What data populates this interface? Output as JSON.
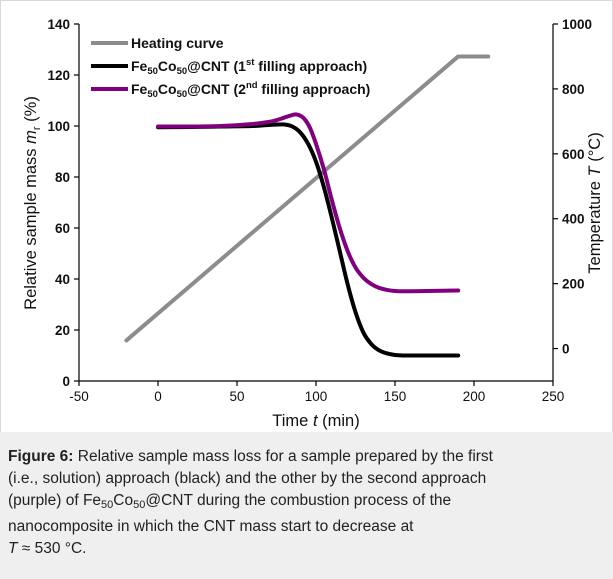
{
  "chart_data": {
    "type": "line",
    "x": {
      "label": "Time t (min)",
      "label_parts": {
        "pre": "Time ",
        "var": "t",
        "post": " (min)"
      },
      "range": [
        -50,
        250
      ],
      "ticks": [
        -50,
        0,
        50,
        100,
        150,
        200,
        250
      ],
      "tick_labels": [
        "-50",
        "0",
        "50",
        "100",
        "150",
        "200",
        "250"
      ]
    },
    "y_left": {
      "label": "Relative sample mass m_r (%)",
      "label_parts": {
        "pre": "Relative sample mass ",
        "var": "m",
        "sub": "r",
        "post": " (%)"
      },
      "range": [
        0,
        140
      ],
      "ticks": [
        0,
        20,
        40,
        60,
        80,
        100,
        120,
        140
      ],
      "tick_labels": [
        "0",
        "20",
        "40",
        "60",
        "80",
        "100",
        "120",
        "140"
      ]
    },
    "y_right": {
      "label": "Temperature T (°C)",
      "label_parts": {
        "pre": "Temperature ",
        "var": "T",
        "post": " (°C)"
      },
      "range": [
        -100,
        1000
      ],
      "ticks": [
        0,
        200,
        400,
        600,
        800,
        1000
      ],
      "tick_labels": [
        "0",
        "200",
        "400",
        "600",
        "800",
        "1000"
      ]
    },
    "legend": {
      "placement": "top-left",
      "entries": [
        {
          "text": "Heating curve",
          "color": "#8c8c8c"
        },
        {
          "base": "Fe",
          "s1": "50",
          "mid": "Co",
          "s2": "50",
          "rest": "@CNT (1",
          "sup": "st",
          "end": " filling approach)",
          "color": "#000000"
        },
        {
          "base": "Fe",
          "s1": "50",
          "mid": "Co",
          "s2": "50",
          "rest": "@CNT (2",
          "sup": "nd",
          "end": " filling approach)",
          "color": "#800080"
        }
      ]
    },
    "series": [
      {
        "name": "Heating curve",
        "axis": "right",
        "color": "#8c8c8c",
        "x": [
          -20,
          190,
          209
        ],
        "y": [
          25,
          900,
          900
        ]
      },
      {
        "name": "Fe50Co50@CNT (1st filling approach)",
        "axis": "left",
        "color": "#000000",
        "x": [
          0,
          20,
          40,
          60,
          70,
          80,
          85,
          90,
          95,
          100,
          105,
          110,
          115,
          120,
          125,
          130,
          135,
          140,
          145,
          150,
          155,
          160,
          170,
          180,
          190
        ],
        "y": [
          99.5,
          99.6,
          99.8,
          100.0,
          100.4,
          100.6,
          99.8,
          97.5,
          93.0,
          86.0,
          76.0,
          64.0,
          51.0,
          38.0,
          27.0,
          19.0,
          14.5,
          12.0,
          10.8,
          10.2,
          10.0,
          10.0,
          10.0,
          10.0,
          10.0
        ]
      },
      {
        "name": "Fe50Co50@CNT (2nd filling approach)",
        "axis": "left",
        "color": "#800080",
        "x": [
          0,
          20,
          40,
          60,
          70,
          75,
          80,
          85,
          88,
          92,
          96,
          100,
          105,
          110,
          115,
          120,
          125,
          130,
          135,
          140,
          145,
          150,
          155,
          160,
          170,
          180,
          190
        ],
        "y": [
          99.8,
          99.8,
          100.0,
          100.8,
          101.6,
          102.3,
          103.3,
          104.3,
          104.5,
          103.2,
          99.5,
          93.0,
          83.0,
          71.0,
          60.0,
          51.0,
          44.5,
          40.5,
          38.0,
          36.5,
          35.7,
          35.3,
          35.2,
          35.2,
          35.3,
          35.4,
          35.5
        ]
      }
    ],
    "grid": false
  },
  "caption": {
    "label": "Figure 6:",
    "line1": " Relative sample mass loss for a sample prepared by the first",
    "line2": "(i.e., solution) approach (black) and the other by the second approach",
    "line3_pre": "(purple) of Fe",
    "line3_s1": "50",
    "line3_mid": "Co",
    "line3_s2": "50",
    "line3_post": "@CNT during the combustion process of the",
    "line4": "nanocomposite in which the CNT mass start to decrease at",
    "line5_var": "T",
    "line5_post": " ≈ 530 °C."
  }
}
